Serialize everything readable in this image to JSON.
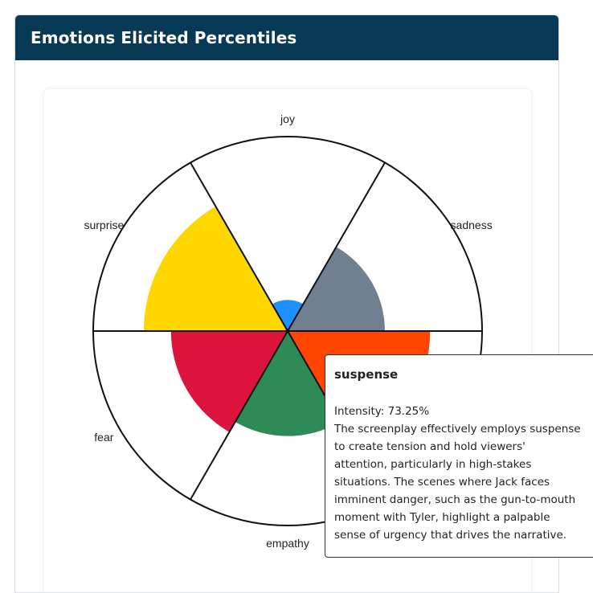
{
  "panel": {
    "title": "Emotions Elicited Percentiles"
  },
  "colors": {
    "header_bg": "#083a55",
    "joy": "#1e90ff",
    "sadness": "#708090",
    "suspense": "#ff4500",
    "empathy": "#2e8b57",
    "fear": "#dc143c",
    "surprise": "#ffd700"
  },
  "chart_data": {
    "type": "polar-area",
    "title": "Emotions Elicited Percentiles",
    "categories": [
      "joy",
      "sadness",
      "suspense",
      "empathy",
      "fear",
      "surprise"
    ],
    "values": [
      16,
      50,
      73.25,
      54,
      60,
      74
    ],
    "visible_labels": [
      "joy",
      "sadness",
      "empathy",
      "fear",
      "surprise"
    ],
    "rlim": [
      0,
      100
    ],
    "grid": false
  },
  "tooltip": {
    "title": "suspense",
    "intensity": "Intensity: 73.25%",
    "lines": [
      "The screenplay effectively employs suspense",
      "to create tension and hold viewers'",
      "attention, particularly in high-stakes",
      "situations. The scenes where Jack faces",
      "imminent danger, such as the gun-to-mouth",
      "moment with Tyler, highlight a palpable",
      "sense of urgency that drives the narrative."
    ]
  }
}
